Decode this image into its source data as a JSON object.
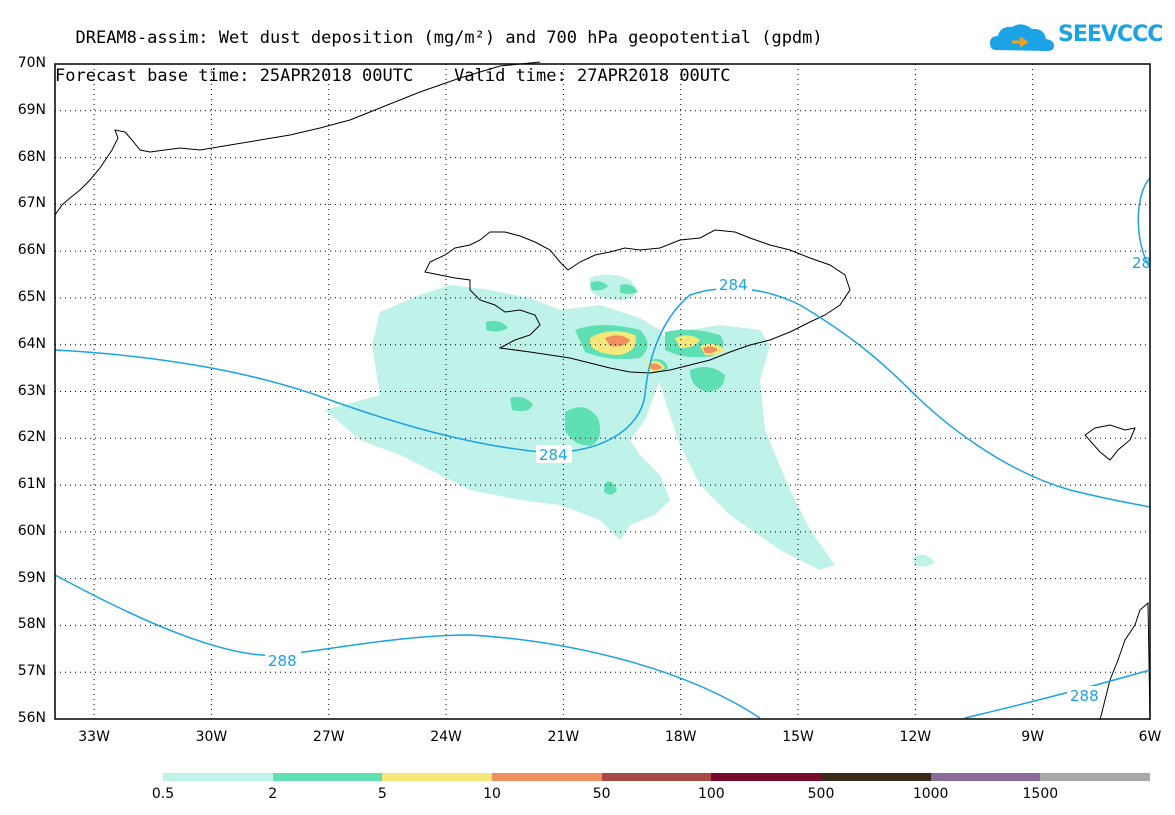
{
  "title": {
    "line1": "DREAM8-assim: Wet dust deposition (mg/m²) and 700 hPa geopotential (gpdm)",
    "line2": "Forecast base time: 25APR2018 00UTC    Valid time: 27APR2018 00UTC"
  },
  "logo": {
    "text": "SEEVCCC",
    "icon": "cloud-logo-icon",
    "color": "#1ba3e6"
  },
  "map": {
    "lat_range": [
      56,
      70
    ],
    "lon_range": [
      -34,
      -6
    ],
    "lat_labels": [
      "70N",
      "69N",
      "68N",
      "67N",
      "66N",
      "65N",
      "64N",
      "63N",
      "62N",
      "61N",
      "60N",
      "59N",
      "58N",
      "57N",
      "56N"
    ],
    "lon_labels": [
      "33W",
      "30W",
      "27W",
      "24W",
      "21W",
      "18W",
      "15W",
      "12W",
      "9W",
      "6W"
    ],
    "contour_color": "#1ba3e6",
    "contour_labels": [
      "284",
      "284",
      "288",
      "288",
      "28"
    ]
  },
  "colorbar": {
    "labels": [
      "0.5",
      "2",
      "5",
      "10",
      "50",
      "100",
      "500",
      "1000",
      "1500"
    ],
    "colors": [
      "#bff2e8",
      "#5fe0b4",
      "#f5e87a",
      "#f09060",
      "#a84a42",
      "#7a0a2a",
      "#3a2a1a",
      "#8a6a9a",
      "#a8a8a8"
    ]
  }
}
